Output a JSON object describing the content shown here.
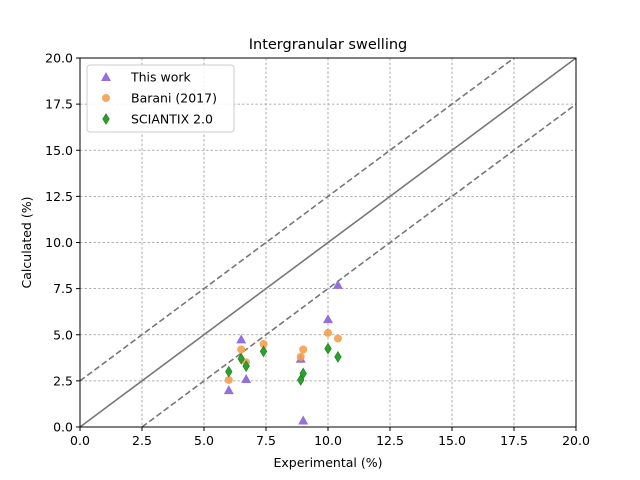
{
  "chart_data": {
    "type": "scatter",
    "title": "Intergranular swelling",
    "xlabel": "Experimental (%)",
    "ylabel": "Calculated (%)",
    "xlim": [
      0,
      20
    ],
    "ylim": [
      0,
      20
    ],
    "xticks": [
      "0.0",
      "2.5",
      "5.0",
      "7.5",
      "10.0",
      "12.5",
      "15.0",
      "17.5",
      "20.0"
    ],
    "yticks": [
      "0.0",
      "2.5",
      "5.0",
      "7.5",
      "10.0",
      "12.5",
      "15.0",
      "17.5",
      "20.0"
    ],
    "grid": true,
    "legend_position": "top-left",
    "reference_lines": [
      {
        "style": "solid",
        "color": "#777777",
        "points": [
          [
            0,
            0
          ],
          [
            20,
            20
          ]
        ]
      },
      {
        "style": "dashed",
        "color": "#777777",
        "points": [
          [
            0,
            2.5
          ],
          [
            17.5,
            20
          ]
        ]
      },
      {
        "style": "dashed",
        "color": "#777777",
        "points": [
          [
            2.5,
            0
          ],
          [
            20,
            17.5
          ]
        ]
      }
    ],
    "series": [
      {
        "name": "This work",
        "marker": "triangle",
        "color": "#9370DB",
        "points": [
          [
            6.0,
            2.0
          ],
          [
            6.5,
            4.75
          ],
          [
            6.7,
            2.6
          ],
          [
            8.9,
            3.7
          ],
          [
            9.0,
            0.35
          ],
          [
            10.0,
            5.85
          ],
          [
            10.4,
            7.7
          ]
        ]
      },
      {
        "name": "Barani (2017)",
        "marker": "circle",
        "color": "#F59E4C",
        "points": [
          [
            6.0,
            2.55
          ],
          [
            6.5,
            4.2
          ],
          [
            6.7,
            3.5
          ],
          [
            7.4,
            4.5
          ],
          [
            8.9,
            3.8
          ],
          [
            9.0,
            4.2
          ],
          [
            10.0,
            5.1
          ],
          [
            10.4,
            4.8
          ]
        ]
      },
      {
        "name": "SCIANTIX 2.0",
        "marker": "diamond",
        "color": "#2CA02C",
        "points": [
          [
            6.0,
            3.0
          ],
          [
            6.5,
            3.7
          ],
          [
            6.7,
            3.3
          ],
          [
            7.4,
            4.1
          ],
          [
            8.9,
            2.55
          ],
          [
            9.0,
            2.9
          ],
          [
            10.0,
            4.25
          ],
          [
            10.4,
            3.8
          ]
        ]
      }
    ]
  }
}
